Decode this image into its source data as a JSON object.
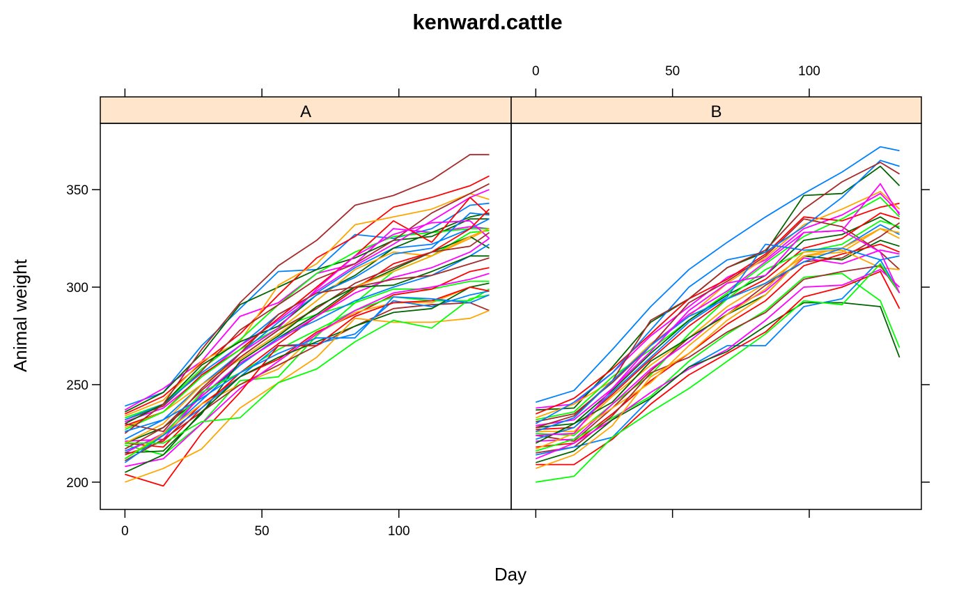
{
  "chart_data": {
    "type": "line",
    "title": "kenward.cattle",
    "xlabel": "Day",
    "ylabel": "Animal weight",
    "xlim": [
      -9,
      141
    ],
    "ylim": [
      186,
      384
    ],
    "x_ticks": [
      0,
      50,
      100
    ],
    "y_ticks": [
      200,
      250,
      300,
      350
    ],
    "strip_color": "#ffe5cc",
    "days": [
      0,
      14,
      28,
      42,
      56,
      70,
      84,
      98,
      112,
      126,
      133
    ],
    "colors": [
      "#0080ff",
      "#ff00ff",
      "#006400",
      "#ff0000",
      "#ffa500",
      "#00ff00",
      "#a52a2a"
    ],
    "panels": [
      {
        "name": "A",
        "series": [
          {
            "values": [
              239,
              246,
              270,
              289,
              308,
              309,
              327,
              325,
              330,
              342,
              343
            ]
          },
          {
            "values": [
              237,
              248,
              262,
              285,
              292,
              307,
              312,
              330,
              328,
              331,
              330
            ]
          },
          {
            "values": [
              236,
              246,
              266,
              291,
              300,
              309,
              315,
              324,
              326,
              335,
              335
            ]
          },
          {
            "values": [
              235,
              244,
              261,
              276,
              296,
              315,
              326,
              341,
              346,
              352,
              357
            ]
          },
          {
            "values": [
              234,
              242,
              262,
              272,
              301,
              312,
              332,
              336,
              340,
              348,
              345
            ]
          },
          {
            "values": [
              233,
              240,
              258,
              273,
              291,
              307,
              318,
              326,
              328,
              330,
              330
            ]
          },
          {
            "values": [
              232,
              239,
              257,
              278,
              291,
              304,
              312,
              324,
              338,
              348,
              353
            ]
          },
          {
            "values": [
              232,
              240,
              256,
              270,
              286,
              297,
              310,
              320,
              322,
              330,
              335
            ]
          },
          {
            "values": [
              231,
              238,
              254,
              270,
              283,
              298,
              311,
              322,
              334,
              346,
              350
            ]
          },
          {
            "values": [
              230,
              240,
              260,
              272,
              280,
              296,
              306,
              320,
              328,
              336,
              338
            ]
          },
          {
            "values": [
              229,
              236,
              255,
              268,
              284,
              300,
              316,
              334,
              323,
              346,
              337
            ]
          },
          {
            "values": [
              228,
              236,
              250,
              264,
              278,
              293,
              309,
              318,
              316,
              325,
              330
            ]
          },
          {
            "values": [
              227,
              236,
              254,
              268,
              279,
              286,
              292,
              308,
              316,
              328,
              329
            ]
          },
          {
            "values": [
              225,
              240,
              268,
              292,
              311,
              324,
              342,
              347,
              355,
              368,
              368
            ]
          },
          {
            "values": [
              222,
              232,
              250,
              266,
              282,
              296,
              305,
              317,
              320,
              338,
              337
            ]
          },
          {
            "values": [
              221,
              222,
              245,
              266,
              279,
              299,
              316,
              327,
              333,
              334,
              325
            ]
          },
          {
            "values": [
              220,
              228,
              244,
              260,
              274,
              286,
              300,
              309,
              318,
              326,
              320
            ]
          },
          {
            "values": [
              220,
              218,
              238,
              256,
              271,
              285,
              299,
              312,
              318,
              330,
              340
            ]
          },
          {
            "values": [
              220,
              230,
              250,
              263,
              276,
              290,
              300,
              308,
              316,
              326,
              330
            ]
          },
          {
            "values": [
              219,
              214,
              230,
              252,
              254,
              275,
              292,
              299,
              299,
              303,
              303
            ]
          },
          {
            "values": [
              217,
              228,
              247,
              264,
              278,
              289,
              302,
              310,
              318,
              321,
              328
            ]
          },
          {
            "values": [
              216,
              224,
              242,
              260,
              274,
              283,
              293,
              300,
              306,
              316,
              322
            ]
          },
          {
            "values": [
              215,
              225,
              244,
              261,
              273,
              285,
              297,
              305,
              310,
              318,
              325
            ]
          },
          {
            "values": [
              215,
              216,
              235,
              262,
              275,
              290,
              300,
              301,
              308,
              316,
              316
            ]
          },
          {
            "values": [
              214,
              221,
              240,
              254,
              263,
              277,
              286,
              296,
              299,
              308,
              310
            ]
          },
          {
            "values": [
              212,
              225,
              240,
              250,
              258,
              276,
              287,
              292,
              292,
              300,
              298
            ]
          },
          {
            "values": [
              212,
              224,
              246,
              256,
              268,
              278,
              288,
              295,
              293,
              293,
              299
            ]
          },
          {
            "values": [
              211,
              222,
              236,
              250,
              260,
              270,
              280,
              289,
              291,
              292,
              288
            ]
          },
          {
            "values": [
              210,
              224,
              238,
              254,
              270,
              271,
              276,
              293,
              290,
              296,
              298
            ]
          },
          {
            "values": [
              208,
              212,
              230,
              248,
              262,
              276,
              288,
              297,
              300,
              304,
              307
            ]
          },
          {
            "values": [
              205,
              214,
              236,
              254,
              264,
              272,
              280,
              287,
              289,
              300,
              302
            ]
          },
          {
            "values": [
              204,
              198,
              225,
              246,
              270,
              270,
              285,
              292,
              293,
              300,
              298
            ]
          },
          {
            "values": [
              200,
              207,
              217,
              238,
              251,
              264,
              284,
              282,
              282,
              284,
              288
            ]
          },
          {
            "values": [
              220,
              220,
              231,
              233,
              251,
              258,
              272,
              283,
              279,
              294,
              296
            ]
          },
          {
            "values": [
              230,
              226,
              248,
              266,
              286,
              297,
              300,
              304,
              306,
              312,
              315
            ]
          },
          {
            "values": [
              226,
              232,
              243,
              256,
              266,
              274,
              274,
              295,
              294,
              292,
              296
            ]
          }
        ]
      },
      {
        "name": "B",
        "series": [
          {
            "values": [
              241,
              247,
              268,
              290,
              309,
              323,
              336,
              348,
              359,
              372,
              370
            ]
          },
          {
            "values": [
              238,
              240,
              256,
              275,
              290,
              305,
              314,
              330,
              337,
              348,
              338
            ]
          },
          {
            "values": [
              237,
              238,
              259,
              282,
              294,
              310,
              318,
              347,
              348,
              362,
              352
            ]
          },
          {
            "values": [
              235,
              243,
              258,
              276,
              294,
              304,
              317,
              336,
              334,
              341,
              343
            ]
          },
          {
            "values": [
              233,
              240,
              252,
              271,
              285,
              302,
              315,
              332,
              340,
              349,
              340
            ]
          },
          {
            "values": [
              232,
              236,
              254,
              268,
              283,
              297,
              312,
              326,
              335,
              346,
              336
            ]
          },
          {
            "values": [
              231,
              235,
              251,
              270,
              292,
              303,
              316,
              335,
              331,
              318,
              309
            ]
          },
          {
            "values": [
              230,
              241,
              256,
              278,
              300,
              314,
              318,
              331,
              346,
              365,
              362
            ]
          },
          {
            "values": [
              229,
              232,
              248,
              270,
              286,
              298,
              313,
              328,
              329,
              353,
              337
            ]
          },
          {
            "values": [
              228,
              230,
              247,
              266,
              283,
              296,
              306,
              324,
              327,
              336,
              330
            ]
          },
          {
            "values": [
              227,
              228,
              245,
              263,
              280,
              294,
              304,
              320,
              325,
              338,
              335
            ]
          },
          {
            "values": [
              226,
              226,
              244,
              260,
              274,
              290,
              302,
              316,
              318,
              330,
              325
            ]
          },
          {
            "values": [
              225,
              224,
              240,
              255,
              276,
              294,
              309,
              318,
              322,
              334,
              331
            ]
          },
          {
            "values": [
              224,
              221,
              238,
              257,
              274,
              286,
              301,
              313,
              315,
              326,
              333
            ]
          },
          {
            "values": [
              222,
              228,
              246,
              264,
              282,
              295,
              322,
              319,
              320,
              332,
              327
            ]
          },
          {
            "values": [
              221,
              222,
              240,
              258,
              272,
              288,
              298,
              315,
              312,
              319,
              317
            ]
          },
          {
            "values": [
              220,
              230,
              241,
              262,
              274,
              286,
              296,
              316,
              314,
              324,
              321
            ]
          },
          {
            "values": [
              218,
              220,
              235,
              252,
              266,
              281,
              293,
              311,
              317,
              322,
              318
            ]
          },
          {
            "values": [
              217,
              225,
              238,
              251,
              270,
              286,
              299,
              318,
              319,
              310,
              309
            ]
          },
          {
            "values": [
              216,
              222,
              233,
              244,
              262,
              276,
              288,
              305,
              307,
              293,
              269
            ]
          },
          {
            "values": [
              215,
              218,
              234,
              256,
              264,
              277,
              287,
              304,
              308,
              311,
              297
            ]
          },
          {
            "values": [
              214,
              218,
              223,
              243,
              259,
              270,
              270,
              290,
              294,
              314,
              297
            ]
          },
          {
            "values": [
              212,
              220,
              232,
              246,
              258,
              268,
              283,
              300,
              301,
              309,
              300
            ]
          },
          {
            "values": [
              210,
              216,
              232,
              243,
              259,
              267,
              280,
              292,
              292,
              290,
              264
            ]
          },
          {
            "values": [
              209,
              209,
              222,
              240,
              255,
              266,
              277,
              295,
              300,
              308,
              289
            ]
          },
          {
            "values": [
              207,
              214,
              229,
              254,
              266,
              283,
              296,
              316,
              320,
              330,
              328
            ]
          },
          {
            "values": [
              200,
              203,
              223,
              236,
              248,
              262,
              276,
              293,
              291,
              312,
              297
            ]
          },
          {
            "values": [
              228,
              234,
              252,
              283,
              294,
              310,
              319,
              340,
              354,
              364,
              358
            ]
          },
          {
            "values": [
              226,
              233,
              252,
              270,
              285,
              294,
              302,
              313,
              320,
              314,
              316
            ]
          },
          {
            "values": [
              224,
              225,
              248,
              267,
              288,
              302,
              306,
              328,
              329,
              318,
              297
            ]
          }
        ]
      }
    ]
  }
}
